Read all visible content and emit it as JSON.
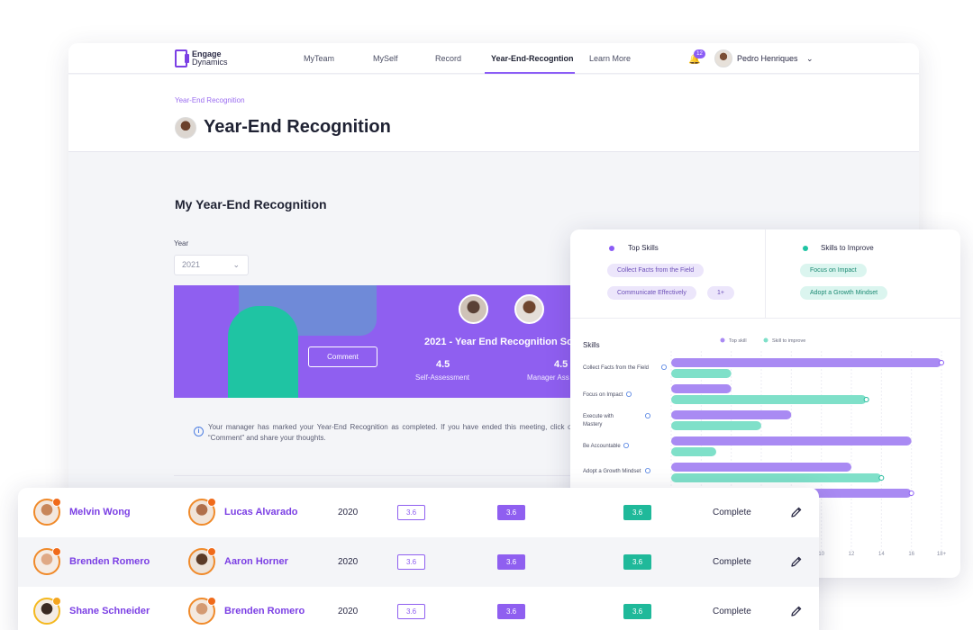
{
  "app": {
    "logo_line1": "Engage",
    "logo_line2": "Dynamics"
  },
  "nav": {
    "items": [
      {
        "label": "MyTeam"
      },
      {
        "label": "MySelf"
      },
      {
        "label": "Record"
      },
      {
        "label": "Year-End-Recogntion"
      },
      {
        "label": "Learn More"
      }
    ],
    "notifications": "12",
    "user_name": "Pedro Henriques"
  },
  "header": {
    "breadcrumb": "Year-End  Recognition",
    "title": "Year-End Recognition"
  },
  "main": {
    "section_title": "My Year-End Recognition",
    "year_label": "Year",
    "year_value": "2021",
    "banner": {
      "comment_label": "Comment",
      "title": "2021 - Year End Recognition Sco",
      "self_score": "4.5",
      "self_label": "Self-Assessment",
      "manager_score": "4.5",
      "manager_label": "Manager Ass"
    },
    "info_text": "Your manager has marked your Year-End Recognition as completed. If you have ended this meeting, click on “Comment” and share your thoughts."
  },
  "skills": {
    "top_heading": "Top Skills",
    "improve_heading": "Skills to Improve",
    "top_chips": [
      "Collect Facts from the Field",
      "Communicate Effectively",
      "1+"
    ],
    "improve_chips": [
      "Focus on Impact",
      "Adopt a Growth Mindset"
    ],
    "colors": {
      "top": "#a98af3",
      "improve": "#7fe0c9"
    }
  },
  "chart_data": {
    "type": "bar",
    "orientation": "horizontal",
    "title": "Skills",
    "legend": [
      "Top skill",
      "Skill to improve"
    ],
    "categories": [
      "Collect Facts from the Field",
      "Focus on Impact",
      "Execute with Mastery",
      "Be Accountable",
      "Adopt a Growth Mindset"
    ],
    "series": [
      {
        "name": "Top skill",
        "values": [
          18,
          4,
          8,
          16,
          12
        ]
      },
      {
        "name": "Skill to improve",
        "values": [
          4,
          13,
          6,
          3,
          14
        ]
      }
    ],
    "extra_top_bar": 16,
    "xlim": [
      0,
      18
    ],
    "x_ticks": [
      "10",
      "12",
      "14",
      "16",
      "18+"
    ]
  },
  "table": {
    "rows": [
      {
        "employee": "Melvin Wong",
        "manager": "Lucas Alvarado",
        "year": "2020",
        "score1": "3.6",
        "score2": "3.6",
        "score3": "3.6",
        "status": "Complete"
      },
      {
        "employee": "Brenden Romero",
        "manager": "Aaron Horner",
        "year": "2020",
        "score1": "3.6",
        "score2": "3.6",
        "score3": "3.6",
        "status": "Complete"
      },
      {
        "employee": "Shane Schneider",
        "manager": "Brenden Romero",
        "year": "2020",
        "score1": "3.6",
        "score2": "3.6",
        "score3": "3.6",
        "status": "Complete"
      }
    ]
  }
}
